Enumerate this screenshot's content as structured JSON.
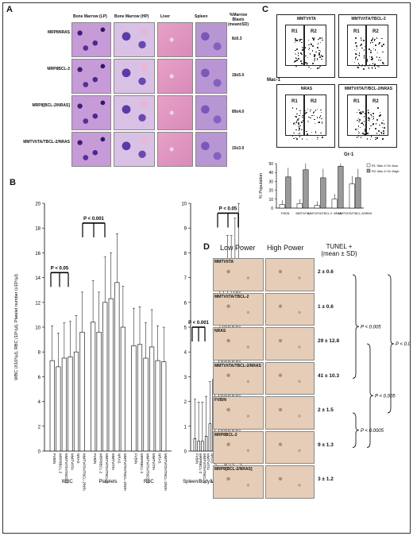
{
  "panels": {
    "a": "A",
    "b": "B",
    "c": "C",
    "d": "D"
  },
  "panel_a": {
    "col_headers": [
      "Bone Marrow (LP)",
      "Bone Marrow (HP)",
      "Liver",
      "Spleen"
    ],
    "blast_header": "%Marrow Blasts (mean±SD)",
    "rows": [
      {
        "label": "MRP8NRAS",
        "blasts": "8±0.3"
      },
      {
        "label": "MRP8BCL-2",
        "blasts": "18±5.0"
      },
      {
        "label": "MRP8[BCL-2/NRAS]",
        "blasts": "89±4.0"
      },
      {
        "label": "MMTV/tTA/TBCL-2/NRAS",
        "blasts": "15±3.0"
      }
    ]
  },
  "panel_c": {
    "plots": [
      {
        "title": "MMTV/tTA",
        "g1": "R1",
        "g2": "R2"
      },
      {
        "title": "MMTV/tTA/TBCL-2",
        "g1": "R1",
        "g2": "R2"
      },
      {
        "title": "NRAS",
        "g1": "R1",
        "g2": "R2"
      },
      {
        "title": "MMTV/tTA/T/BCL-2/NRAS",
        "g1": "R1",
        "g2": "R2"
      }
    ],
    "y_axis": "Mac-1",
    "x_axis": "Gr-1"
  },
  "panel_d": {
    "col_low": "Low Power",
    "col_high": "High Power",
    "tunel_header": "TUNEL + (mean ± SD)",
    "rows": [
      {
        "label": "MMTV/tTA",
        "value": "2 ± 0.6"
      },
      {
        "label": "MMTV/tTA/TBCL-2",
        "value": "1 ± 0.6"
      },
      {
        "label": "NRAS",
        "value": "29 ± 12.8"
      },
      {
        "label": "MMTV/tTA/TBCL-2/NRAS",
        "value": "41 ± 10.3"
      },
      {
        "label": "FVB/N",
        "value": "2 ± 1.5"
      },
      {
        "label": "MRP8BCL-2",
        "value": "9 ± 1.3"
      },
      {
        "label": "MRP8[BCL-2/NRAS]",
        "value": "3 ± 1.2"
      }
    ],
    "pvalues": [
      "P < 0.005",
      "P < 0.0005",
      "P < 0.005",
      "P < 0.0005"
    ]
  },
  "chart_data": [
    {
      "type": "bar",
      "panel": "B-left",
      "ylabel": "WBC (X10³/µl), RBC (10⁶/µl), Platelet number (x10⁵/µl)",
      "ylim": [
        0,
        20
      ],
      "yticks": [
        0,
        2,
        4,
        6,
        8,
        10,
        12,
        14,
        16,
        18,
        20
      ],
      "groups": [
        "WBC",
        "Platelets",
        "RBC"
      ],
      "categories": [
        "FVB/N",
        "MRP8BCL-2",
        "MMTV/tTA/TBCL-2",
        "MMTV/tTA",
        "NRAS",
        "MMTV/tTA/TBCL-2/NRAS"
      ],
      "series": [
        {
          "name": "WBC",
          "values": [
            7.3,
            6.8,
            7.5,
            7.6,
            8.0,
            9.6
          ]
        },
        {
          "name": "Platelets",
          "values": [
            10.4,
            9.6,
            12.0,
            12.3,
            13.6,
            10.0
          ]
        },
        {
          "name": "RBC",
          "values": [
            8.5,
            8.6,
            7.5,
            8.4,
            7.3,
            7.2
          ]
        }
      ],
      "annotations": [
        "P < 0.05",
        "P < 0.001"
      ]
    },
    {
      "type": "bar",
      "panel": "B-right",
      "ylim": [
        0,
        10
      ],
      "yticks": [
        0,
        1,
        2,
        3,
        4,
        5,
        6,
        7,
        8,
        9,
        10
      ],
      "groups": [
        "Spleen/Body Weight",
        "Liver/Body Weight"
      ],
      "categories": [
        "FVB/N",
        "MRP8BCL-2",
        "MMTV/tTA/TBCL-2",
        "MMTV/tTA",
        "NRAS",
        "MMTV/tTA/TBCL-2/NRAS"
      ],
      "series": [
        {
          "name": "Spleen/Body Weight",
          "values": [
            0.5,
            0.4,
            0.4,
            0.6,
            1.1,
            2.9
          ]
        },
        {
          "name": "Liver/Body Weight",
          "values": [
            4.8,
            5.2,
            6.1,
            6.1,
            6.7,
            7.2
          ]
        }
      ],
      "annotations": [
        "P < 0.001",
        "P < 0.05"
      ]
    },
    {
      "type": "bar",
      "panel": "C-bottom",
      "ylabel": "% Population",
      "ylim": [
        0,
        50
      ],
      "yticks": [
        0,
        10,
        20,
        30,
        40,
        50
      ],
      "categories": [
        "FVB/N",
        "MMTV/tTA",
        "MMTV/tTA/TBCL-2",
        "NRAS",
        "MMTV/tTA/T/BCL-2/NRAS"
      ],
      "series": [
        {
          "name": "R1: Mac-1+Gr-1low",
          "values": [
            4,
            5,
            3,
            10,
            27
          ]
        },
        {
          "name": "R2: Mac-1+Gr-1high",
          "values": [
            35,
            43,
            34,
            47,
            34
          ]
        }
      ],
      "legend": "top-right"
    }
  ]
}
